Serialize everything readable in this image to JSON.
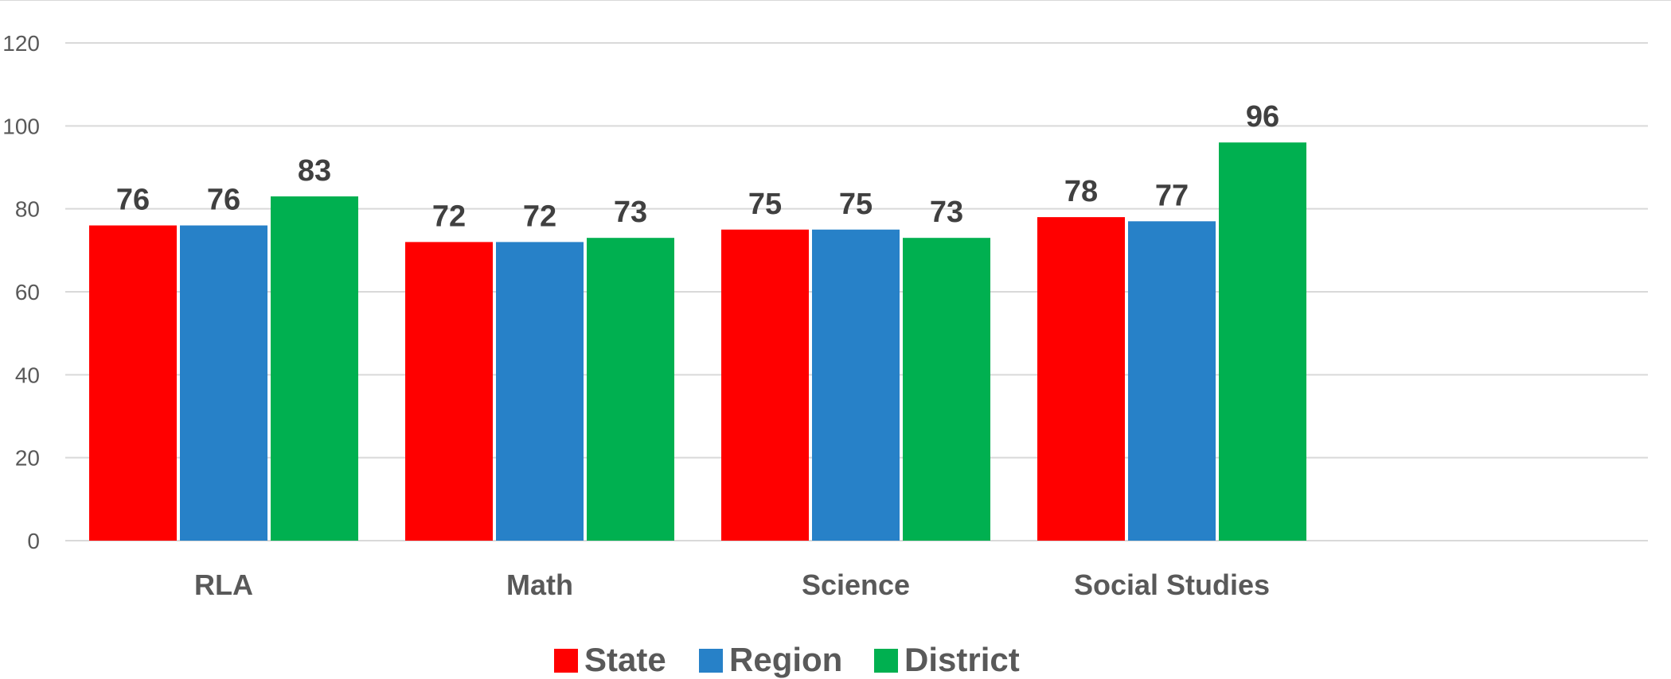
{
  "chart_data": {
    "type": "bar",
    "categories": [
      "RLA",
      "Math",
      "Science",
      "Social Studies"
    ],
    "series": [
      {
        "name": "State",
        "color": "#ff0000",
        "values": [
          76,
          72,
          75,
          78
        ]
      },
      {
        "name": "Region",
        "color": "#2781c8",
        "values": [
          76,
          72,
          75,
          77
        ]
      },
      {
        "name": "District",
        "color": "#00b050",
        "values": [
          83,
          73,
          73,
          96
        ]
      }
    ],
    "ylim": [
      0,
      120
    ],
    "yticks": [
      0,
      20,
      40,
      60,
      80,
      100,
      120
    ],
    "title": "",
    "xlabel": "",
    "ylabel": "",
    "grid": true,
    "legend_position": "bottom",
    "data_labels": true,
    "colors": {
      "gridline": "#d9d9d9",
      "tick_text": "#595959",
      "data_label_text": "#404040"
    }
  }
}
